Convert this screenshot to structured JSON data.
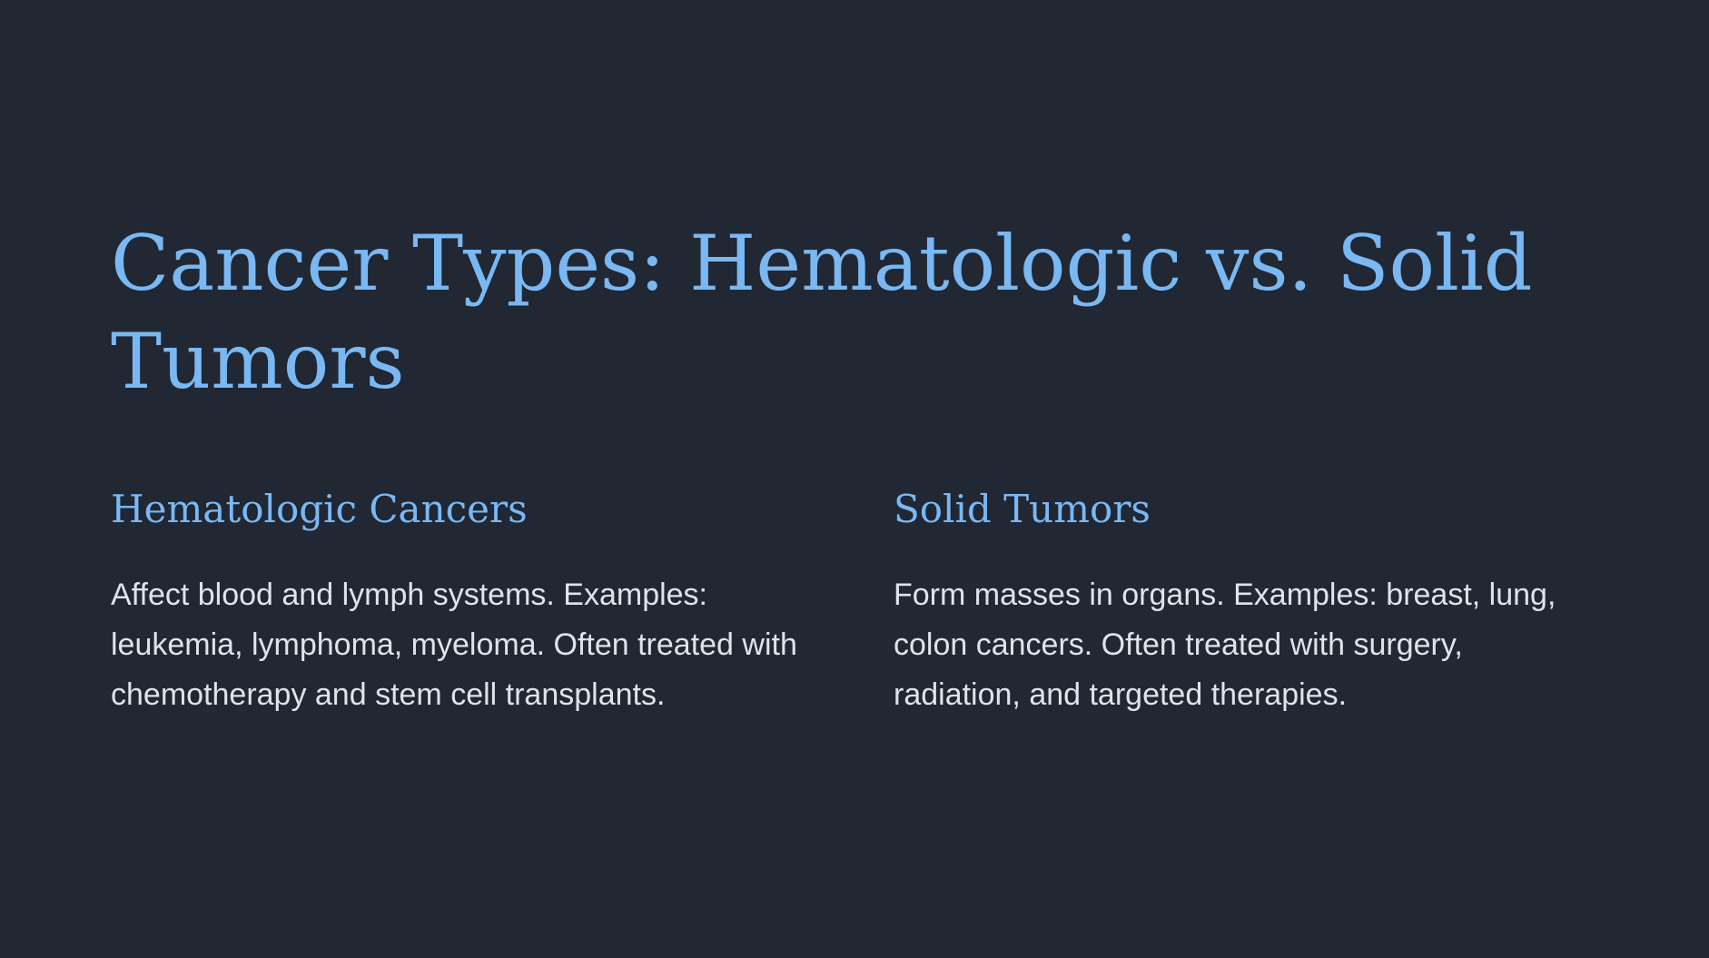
{
  "slide": {
    "title": "Cancer Types: Hematologic vs. Solid Tumors",
    "columns": [
      {
        "heading": "Hematologic Cancers",
        "body": "Affect blood and lymph systems. Examples: leukemia, lymphoma, myeloma. Often treated with chemotherapy and stem cell transplants."
      },
      {
        "heading": "Solid Tumors",
        "body": "Form masses in organs. Examples: breast, lung, colon cancers. Often treated with surgery, radiation, and targeted therapies."
      }
    ]
  },
  "colors": {
    "background": "#212733",
    "accent": "#79b8f3",
    "text": "#dfe3ea"
  }
}
